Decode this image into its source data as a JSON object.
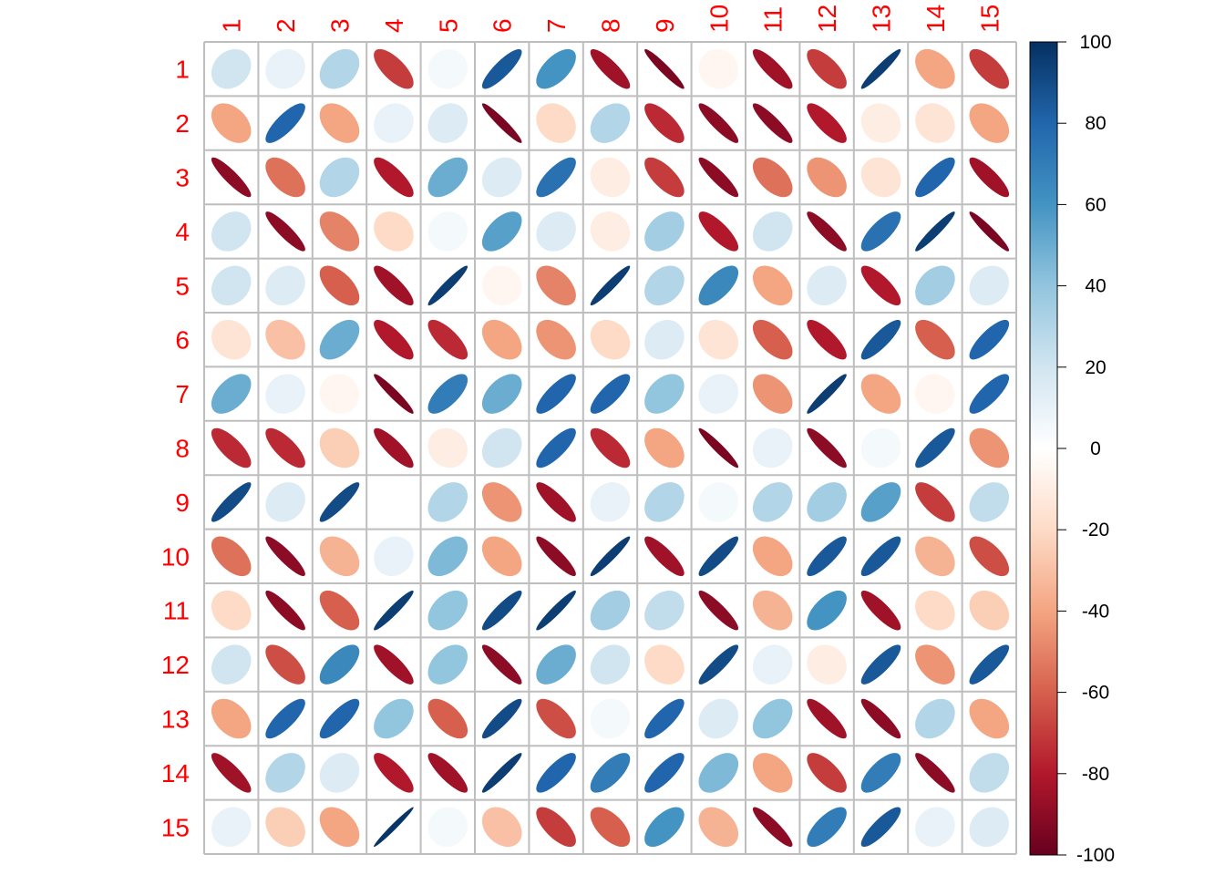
{
  "chart_data": {
    "type": "heatmap",
    "method": "ellipse",
    "row_labels": [
      "1",
      "2",
      "3",
      "4",
      "5",
      "6",
      "7",
      "8",
      "9",
      "10",
      "11",
      "12",
      "13",
      "14",
      "15"
    ],
    "col_labels": [
      "1",
      "2",
      "3",
      "4",
      "5",
      "6",
      "7",
      "8",
      "9",
      "10",
      "11",
      "12",
      "13",
      "14",
      "15"
    ],
    "label_color": "#ff0000",
    "grid_color": "#bebebe",
    "values": [
      [
        20,
        10,
        30,
        -70,
        5,
        85,
        60,
        -85,
        -95,
        -5,
        -85,
        -70,
        95,
        -40,
        -70
      ],
      [
        -40,
        80,
        -40,
        10,
        15,
        -95,
        -20,
        30,
        -75,
        -90,
        -90,
        -80,
        -10,
        -15,
        -40
      ],
      [
        -90,
        -55,
        30,
        -80,
        50,
        15,
        75,
        -10,
        -70,
        -90,
        -55,
        -45,
        -15,
        80,
        -85
      ],
      [
        20,
        -90,
        -50,
        -20,
        5,
        55,
        15,
        -10,
        35,
        -80,
        20,
        -90,
        75,
        95,
        -95
      ],
      [
        20,
        15,
        -60,
        -85,
        95,
        -5,
        -50,
        95,
        30,
        65,
        -40,
        15,
        -80,
        35,
        15
      ],
      [
        -15,
        -30,
        50,
        -80,
        -75,
        -40,
        -45,
        -20,
        15,
        -15,
        -60,
        -80,
        85,
        -60,
        80
      ],
      [
        50,
        10,
        -5,
        -95,
        70,
        50,
        80,
        80,
        40,
        10,
        -45,
        95,
        -40,
        -5,
        80
      ],
      [
        -75,
        -75,
        -25,
        -85,
        -10,
        20,
        80,
        -75,
        -40,
        -95,
        10,
        -90,
        5,
        85,
        -45
      ],
      [
        90,
        15,
        90,
        0,
        30,
        -45,
        -85,
        10,
        30,
        5,
        30,
        35,
        55,
        -70,
        25
      ],
      [
        -55,
        -90,
        -35,
        10,
        45,
        -40,
        -90,
        95,
        -85,
        90,
        -40,
        85,
        85,
        -35,
        -65
      ],
      [
        -20,
        -90,
        -60,
        95,
        40,
        90,
        95,
        35,
        25,
        -90,
        -35,
        60,
        -85,
        -20,
        -25
      ],
      [
        20,
        -65,
        65,
        -85,
        40,
        -90,
        50,
        20,
        -20,
        90,
        10,
        -10,
        85,
        -45,
        85
      ],
      [
        -40,
        80,
        80,
        40,
        -60,
        90,
        -65,
        5,
        80,
        15,
        40,
        -85,
        -90,
        30,
        -40
      ],
      [
        -85,
        30,
        15,
        -80,
        -85,
        95,
        80,
        70,
        80,
        45,
        -40,
        -70,
        70,
        -90,
        25
      ],
      [
        10,
        -25,
        -40,
        98,
        5,
        -30,
        -70,
        -60,
        60,
        -35,
        -90,
        70,
        85,
        10,
        15
      ]
    ],
    "colorbar": {
      "ticks": [
        100,
        80,
        60,
        40,
        20,
        0,
        -20,
        -40,
        -60,
        -80,
        -100
      ],
      "range": [
        -100,
        100
      ]
    },
    "colorscale": [
      "#67001f",
      "#b2182b",
      "#d6604d",
      "#f4a582",
      "#fddbc7",
      "#ffffff",
      "#d1e5f0",
      "#92c5de",
      "#4393c3",
      "#2166ac",
      "#053061"
    ]
  }
}
